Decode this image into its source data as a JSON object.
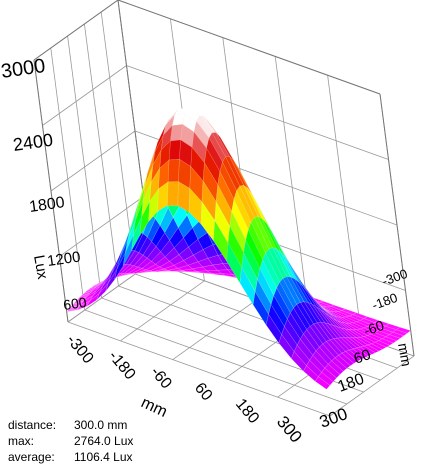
{
  "chart_data": {
    "type": "surface",
    "title": "",
    "zlabel": "Lux",
    "xlabel": "mm",
    "ylabel": "mm",
    "x_ticks": [
      -300,
      -180,
      -60,
      60,
      180,
      300
    ],
    "y_ticks": [
      -300,
      -180,
      -60,
      60,
      180,
      300
    ],
    "z_ticks": [
      600,
      1200,
      1800,
      2400,
      3000
    ],
    "x_tick_labels": [
      "-300",
      "-180",
      "-60",
      "60",
      "180",
      "300"
    ],
    "y_tick_labels": [
      "-300",
      "-180",
      "-60",
      "60",
      "180",
      "300"
    ],
    "z_tick_labels": [
      "600",
      "1200",
      "1800",
      "2400",
      "3000"
    ],
    "xlim": [
      -300,
      300
    ],
    "ylim": [
      -300,
      300
    ],
    "zlim": [
      600,
      3000
    ],
    "grid": true,
    "colormap": [
      "#ffffff",
      "#ff00ff",
      "#8a00ff",
      "#0000ff",
      "#00ffff",
      "#00ff00",
      "#ffff00",
      "#ff6600",
      "#dd0000",
      "#ffffff"
    ],
    "peak": {
      "x": 0,
      "y": -150,
      "z": 2764.0
    }
  },
  "stats": {
    "distance_label": "distance:",
    "distance_value": "300.0 mm",
    "max_label": "max:",
    "max_value": "2764.0 Lux",
    "average_label": "average:",
    "average_value": "1106.4 Lux"
  }
}
